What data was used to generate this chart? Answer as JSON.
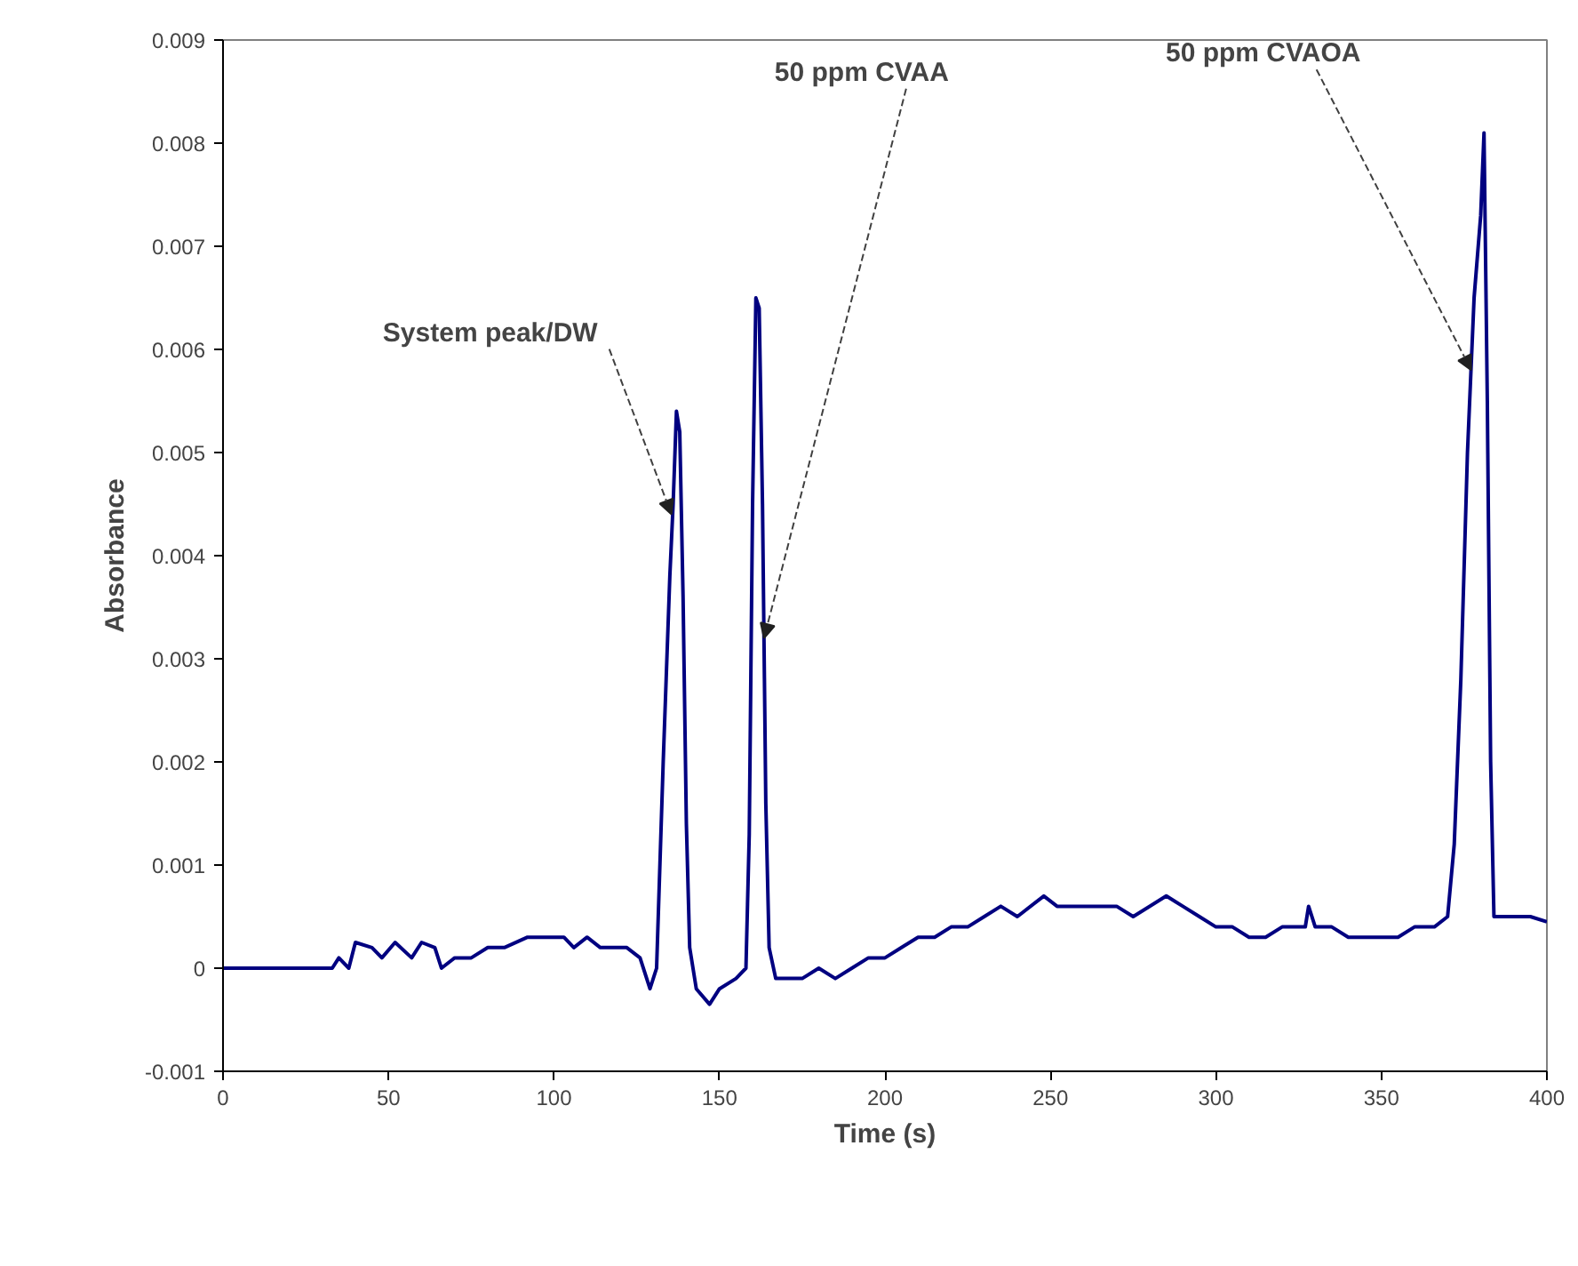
{
  "chart_data": {
    "type": "line",
    "xlabel": "Time (s)",
    "ylabel": "Absorbance",
    "x": [
      0,
      31,
      33,
      35,
      38,
      40,
      45,
      48,
      52,
      57,
      60,
      64,
      66,
      70,
      75,
      80,
      85,
      92,
      98,
      103,
      106,
      110,
      114,
      118,
      122,
      126,
      129,
      131,
      133,
      135,
      136,
      137,
      138,
      139,
      140,
      141,
      143,
      147,
      150,
      155,
      158,
      159,
      160,
      161,
      162,
      163,
      164,
      165,
      167,
      175,
      180,
      185,
      190,
      195,
      200,
      205,
      210,
      215,
      220,
      225,
      230,
      235,
      240,
      248,
      252,
      260,
      270,
      275,
      285,
      290,
      295,
      300,
      305,
      310,
      315,
      320,
      327,
      328,
      330,
      335,
      340,
      345,
      350,
      355,
      360,
      366,
      370,
      372,
      374,
      376,
      378,
      380,
      381,
      382,
      383,
      384,
      390,
      395,
      400
    ],
    "series": [
      {
        "color": "#000080",
        "values": [
          0,
          0,
          0,
          0.0001,
          0,
          0.00025,
          0.0002,
          0.0001,
          0.00025,
          0.0001,
          0.00025,
          0.0002,
          0,
          0.0001,
          0.0001,
          0.0002,
          0.0002,
          0.0003,
          0.0003,
          0.0003,
          0.0002,
          0.0003,
          0.0002,
          0.0002,
          0.0002,
          0.0001,
          -0.0002,
          0.0,
          0.002,
          0.0038,
          0.0045,
          0.0054,
          0.0052,
          0.0036,
          0.0014,
          0.0002,
          -0.0002,
          -0.00035,
          -0.0002,
          -0.0001,
          0.0,
          0.0013,
          0.0045,
          0.0065,
          0.0064,
          0.0045,
          0.0016,
          0.0002,
          -0.0001,
          -0.0001,
          0.0,
          -0.0001,
          0.0,
          0.0001,
          0.0001,
          0.0002,
          0.0003,
          0.0003,
          0.0004,
          0.0004,
          0.0005,
          0.0006,
          0.0005,
          0.0007,
          0.0006,
          0.0006,
          0.0006,
          0.0005,
          0.0007,
          0.0006,
          0.0005,
          0.0004,
          0.0004,
          0.0003,
          0.0003,
          0.0004,
          0.0004,
          0.0006,
          0.0004,
          0.0004,
          0.0003,
          0.0003,
          0.0003,
          0.0003,
          0.0004,
          0.0004,
          0.0005,
          0.0012,
          0.0028,
          0.005,
          0.0065,
          0.0073,
          0.0081,
          0.0055,
          0.002,
          0.0005,
          0.0005,
          0.0005,
          0.00045
        ]
      }
    ],
    "xlim": [
      0,
      400
    ],
    "xticks": [
      0,
      50,
      100,
      150,
      200,
      250,
      300,
      350,
      400
    ],
    "ylim": [
      -0.001,
      0.009
    ],
    "yticks": [
      -0.001,
      0,
      0.001,
      0.002,
      0.003,
      0.004,
      0.005,
      0.006,
      0.007,
      0.008,
      0.009
    ],
    "grid": false,
    "marker": "none",
    "line_style": "solid",
    "annotations": [
      {
        "text": "System peak/DW",
        "x": 135.5,
        "y": 0.0044
      },
      {
        "text": "50 ppm CVAA",
        "x": 163.45,
        "y": 0.0032
      },
      {
        "text": "50 ppm CVAOA",
        "x": 377.1,
        "y": 0.0058
      }
    ]
  }
}
